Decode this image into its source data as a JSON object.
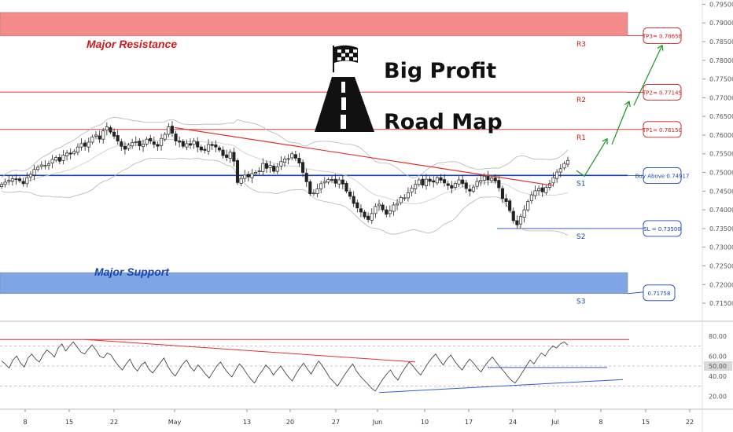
{
  "chart_data": [
    {
      "type": "candlestick",
      "title": "Big Profit",
      "subtitle": "Road Map",
      "ylim": [
        0.7125,
        0.7955
      ],
      "y_ticks": [
        "0.79500",
        "0.79000",
        "0.78500",
        "0.78000",
        "0.77500",
        "0.77000",
        "0.76500",
        "0.76000",
        "0.75500",
        "0.75000",
        "0.74500",
        "0.74000",
        "0.73500",
        "0.73000",
        "0.72500",
        "0.72000",
        "0.71500"
      ],
      "y_tick_values": [
        0.795,
        0.79,
        0.785,
        0.78,
        0.775,
        0.77,
        0.765,
        0.76,
        0.755,
        0.75,
        0.745,
        0.74,
        0.735,
        0.73,
        0.725,
        0.72,
        0.715
      ],
      "x_ticks": [
        "8",
        "15",
        "22",
        "May",
        "13",
        "20",
        "27",
        "Jun",
        "10",
        "17",
        "24",
        "Jul",
        "8",
        "15",
        "22"
      ],
      "grid": false,
      "zones": [
        {
          "name": "Major Resistance",
          "from": 0.7865,
          "to": 0.7928,
          "color": "#f48a8a"
        },
        {
          "name": "Major Support",
          "from": 0.7176,
          "to": 0.7232,
          "color": "#7ea6e6"
        }
      ],
      "levels": [
        {
          "label": "R3",
          "value": 0.7865,
          "color": "#d11a1a"
        },
        {
          "label": "R2",
          "value": 0.7715,
          "color": "#d11a1a"
        },
        {
          "label": "R1",
          "value": 0.7615,
          "color": "#d11a1a"
        },
        {
          "label": "S1",
          "value": 0.7492,
          "color": "#1746b5"
        },
        {
          "label": "S2",
          "value": 0.735,
          "color": "#1746b5"
        },
        {
          "label": "S3",
          "value": 0.7176,
          "color": "#1746b5"
        }
      ],
      "callouts": [
        {
          "text": "TP3= 0.78658",
          "value": 0.78658,
          "color": "#d11a1a"
        },
        {
          "text": "TP2= 0.77145",
          "value": 0.77145,
          "color": "#d11a1a"
        },
        {
          "text": "TP1= 0.76150",
          "value": 0.7615,
          "color": "#d11a1a"
        },
        {
          "text": "Buy Above 0.74917",
          "value": 0.74917,
          "color": "#1746b5"
        },
        {
          "text": "SL = 0.73500",
          "value": 0.735,
          "color": "#1746b5"
        },
        {
          "text": "0.71758",
          "value": 0.71758,
          "color": "#1746b5"
        }
      ],
      "trendline": {
        "from": {
          "x": "Apr 30",
          "y": 0.762
        },
        "to": {
          "x": "Jun 29",
          "y": 0.7465
        },
        "color": "#e23030"
      },
      "path_projection": [
        0.7505,
        0.749,
        0.759,
        0.7575,
        0.769,
        0.768,
        0.784
      ],
      "close_series": [
        0.7468,
        0.7474,
        0.7479,
        0.7483,
        0.7481,
        0.7478,
        0.747,
        0.7486,
        0.7495,
        0.7508,
        0.7514,
        0.752,
        0.7519,
        0.7523,
        0.7535,
        0.754,
        0.753,
        0.7546,
        0.7552,
        0.7549,
        0.7556,
        0.7568,
        0.7577,
        0.757,
        0.7581,
        0.7595,
        0.76,
        0.7589,
        0.7611,
        0.7622,
        0.7608,
        0.7597,
        0.7584,
        0.757,
        0.7562,
        0.7573,
        0.758,
        0.7582,
        0.7571,
        0.7576,
        0.7589,
        0.7584,
        0.7575,
        0.757,
        0.7591,
        0.7602,
        0.7622,
        0.7605,
        0.7584,
        0.7581,
        0.757,
        0.7577,
        0.7573,
        0.7584,
        0.7568,
        0.756,
        0.7559,
        0.7575,
        0.7572,
        0.7568,
        0.756,
        0.7545,
        0.754,
        0.7554,
        0.753,
        0.7473,
        0.7484,
        0.7493,
        0.7488,
        0.7497,
        0.75,
        0.7504,
        0.7524,
        0.7511,
        0.7519,
        0.7503,
        0.7515,
        0.7529,
        0.7536,
        0.7537,
        0.755,
        0.7538,
        0.7525,
        0.75,
        0.7475,
        0.7443,
        0.7445,
        0.7456,
        0.747,
        0.7476,
        0.7481,
        0.748,
        0.7471,
        0.748,
        0.7469,
        0.745,
        0.7436,
        0.7417,
        0.7405,
        0.7394,
        0.7381,
        0.7374,
        0.739,
        0.7409,
        0.7415,
        0.74,
        0.7388,
        0.7398,
        0.7413,
        0.7417,
        0.7433,
        0.7432,
        0.7446,
        0.7458,
        0.7468,
        0.748,
        0.7466,
        0.7482,
        0.7476,
        0.7474,
        0.7486,
        0.7479,
        0.7472,
        0.7465,
        0.7458,
        0.7471,
        0.748,
        0.747,
        0.7457,
        0.745,
        0.7461,
        0.7476,
        0.7479,
        0.749,
        0.748,
        0.7485,
        0.7477,
        0.7459,
        0.743,
        0.7422,
        0.7398,
        0.7371,
        0.736,
        0.7382,
        0.74,
        0.7422,
        0.744,
        0.7451,
        0.7457,
        0.7448,
        0.746,
        0.747,
        0.7486,
        0.7501,
        0.751,
        0.7524,
        0.7532
      ],
      "rsi": {
        "ylim": [
          10,
          90
        ],
        "y_ticks": [
          "80.00",
          "60.00",
          "50.00",
          "40.00",
          "20.00"
        ],
        "y_tick_values": [
          80,
          60,
          50,
          40,
          20
        ],
        "current": "50.00",
        "levels": [
          70,
          50,
          30
        ],
        "values": [
          55,
          52,
          48,
          56,
          60,
          53,
          49,
          58,
          62,
          57,
          54,
          61,
          66,
          63,
          59,
          68,
          72,
          65,
          70,
          74,
          69,
          64,
          62,
          67,
          71,
          66,
          60,
          58,
          63,
          61,
          55,
          50,
          46,
          52,
          57,
          49,
          45,
          51,
          54,
          47,
          43,
          48,
          53,
          58,
          50,
          44,
          40,
          46,
          52,
          56,
          49,
          45,
          51,
          47,
          42,
          38,
          44,
          50,
          54,
          48,
          43,
          39,
          46,
          52,
          48,
          42,
          37,
          33,
          40,
          45,
          51,
          47,
          41,
          46,
          50,
          44,
          39,
          35,
          42,
          48,
          53,
          47,
          42,
          49,
          55,
          50,
          44,
          38,
          34,
          30,
          36,
          42,
          47,
          52,
          45,
          40,
          36,
          32,
          28,
          25,
          31,
          37,
          42,
          46,
          40,
          36,
          43,
          49,
          54,
          50,
          45,
          41,
          47,
          53,
          58,
          62,
          56,
          51,
          57,
          61,
          55,
          50,
          46,
          52,
          57,
          53,
          48,
          44,
          50,
          55,
          59,
          54,
          49,
          45,
          40,
          36,
          33,
          38,
          44,
          50,
          56,
          52,
          58,
          63,
          60,
          66,
          70,
          68,
          72,
          74,
          71
        ]
      }
    }
  ]
}
